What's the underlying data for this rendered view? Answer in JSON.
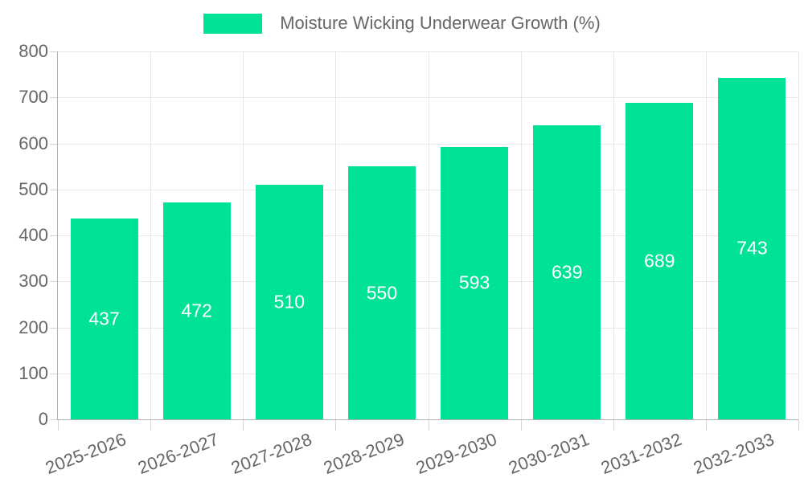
{
  "legend": {
    "label": "Moisture Wicking Underwear Growth (%)"
  },
  "chart_data": {
    "type": "bar",
    "title": "Moisture Wicking Underwear Growth (%)",
    "categories": [
      "2025-2026",
      "2026-2027",
      "2027-2028",
      "2028-2029",
      "2029-2030",
      "2030-2031",
      "2031-2032",
      "2032-2033"
    ],
    "values": [
      437,
      472,
      510,
      550,
      593,
      639,
      689,
      743
    ],
    "xlabel": "",
    "ylabel": "",
    "ylim": [
      0,
      800
    ],
    "ytick_step": 100,
    "grid": true,
    "legend_position": "top",
    "colors": {
      "bar": "#00E396",
      "value_label": "#ffffff",
      "axis_text": "#666666",
      "gridline": "#e7e7e7",
      "axis_line": "#b0b0b0",
      "tick": "#d4d4d4"
    }
  }
}
